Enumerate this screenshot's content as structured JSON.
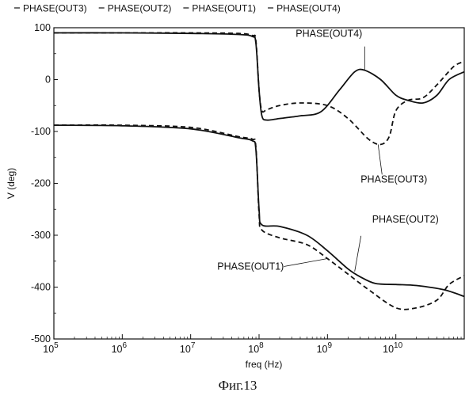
{
  "chart_data": {
    "type": "line",
    "legend": [
      "PHASE(OUT3)",
      "PHASE(OUT2)",
      "PHASE(OUT1)",
      "PHASE(OUT4)"
    ],
    "legend_position": "top",
    "xlabel": "freq (Hz)",
    "ylabel": "V (deg)",
    "x_scale": "log",
    "xlim": [
      100000,
      100000000000
    ],
    "ylim": [
      -500,
      100
    ],
    "x_ticks": [
      {
        "value": 100000,
        "base": "10",
        "exp": "5"
      },
      {
        "value": 1000000,
        "base": "10",
        "exp": "6"
      },
      {
        "value": 10000000,
        "base": "10",
        "exp": "7"
      },
      {
        "value": 100000000,
        "base": "10",
        "exp": "8"
      },
      {
        "value": 1000000000,
        "base": "10",
        "exp": "9"
      },
      {
        "value": 10000000000,
        "base": "10",
        "exp": "10"
      }
    ],
    "y_ticks": [
      {
        "value": 100,
        "label": "100"
      },
      {
        "value": 0,
        "label": "0"
      },
      {
        "value": -100,
        "label": "-100"
      },
      {
        "value": -200,
        "label": "-200"
      },
      {
        "value": -300,
        "label": "-300"
      },
      {
        "value": -400,
        "label": "-400"
      },
      {
        "value": -500,
        "label": "-500"
      }
    ],
    "grid": false,
    "series": [
      {
        "name": "PHASE(OUT4)",
        "style": "solid",
        "points": [
          [
            100000,
            90
          ],
          [
            1000000,
            90
          ],
          [
            10000000,
            89
          ],
          [
            50000000,
            87
          ],
          [
            80000000,
            83
          ],
          [
            90000000,
            70
          ],
          [
            100000000,
            -20
          ],
          [
            110000000,
            -70
          ],
          [
            130000000,
            -78
          ],
          [
            200000000,
            -75
          ],
          [
            400000000,
            -70
          ],
          [
            800000000,
            -62
          ],
          [
            1500000000,
            -20
          ],
          [
            2500000000,
            15
          ],
          [
            3500000000,
            18
          ],
          [
            6000000000,
            0
          ],
          [
            10000000000,
            -30
          ],
          [
            15000000000,
            -40
          ],
          [
            25000000000,
            -45
          ],
          [
            40000000000,
            -30
          ],
          [
            60000000000,
            0
          ],
          [
            100000000000,
            15
          ]
        ]
      },
      {
        "name": "PHASE(OUT3)",
        "style": "dashed",
        "points": [
          [
            100000,
            90
          ],
          [
            1000000,
            90
          ],
          [
            10000000,
            90
          ],
          [
            50000000,
            89
          ],
          [
            80000000,
            85
          ],
          [
            90000000,
            75
          ],
          [
            100000000,
            -20
          ],
          [
            110000000,
            -60
          ],
          [
            130000000,
            -58
          ],
          [
            200000000,
            -50
          ],
          [
            400000000,
            -45
          ],
          [
            1000000000,
            -50
          ],
          [
            2000000000,
            -75
          ],
          [
            4000000000,
            -115
          ],
          [
            6000000000,
            -125
          ],
          [
            8000000000,
            -110
          ],
          [
            10000000000,
            -60
          ],
          [
            15000000000,
            -40
          ],
          [
            25000000000,
            -35
          ],
          [
            40000000000,
            -10
          ],
          [
            70000000000,
            25
          ],
          [
            100000000000,
            35
          ]
        ]
      },
      {
        "name": "PHASE(OUT2)",
        "style": "solid",
        "points": [
          [
            100000,
            -88
          ],
          [
            1000000,
            -89
          ],
          [
            10000000,
            -95
          ],
          [
            50000000,
            -112
          ],
          [
            80000000,
            -118
          ],
          [
            90000000,
            -135
          ],
          [
            100000000,
            -250
          ],
          [
            110000000,
            -280
          ],
          [
            200000000,
            -283
          ],
          [
            500000000,
            -300
          ],
          [
            1000000000,
            -330
          ],
          [
            2000000000,
            -365
          ],
          [
            3000000000,
            -380
          ],
          [
            5000000000,
            -393
          ],
          [
            10000000000,
            -395
          ],
          [
            20000000000,
            -397
          ],
          [
            50000000000,
            -405
          ],
          [
            100000000000,
            -418
          ]
        ]
      },
      {
        "name": "PHASE(OUT1)",
        "style": "dashed",
        "points": [
          [
            100000,
            -88
          ],
          [
            1000000,
            -88
          ],
          [
            10000000,
            -92
          ],
          [
            50000000,
            -110
          ],
          [
            80000000,
            -115
          ],
          [
            90000000,
            -130
          ],
          [
            100000000,
            -260
          ],
          [
            110000000,
            -290
          ],
          [
            200000000,
            -305
          ],
          [
            500000000,
            -318
          ],
          [
            1000000000,
            -345
          ],
          [
            2000000000,
            -375
          ],
          [
            4000000000,
            -405
          ],
          [
            10000000000,
            -440
          ],
          [
            20000000000,
            -440
          ],
          [
            40000000000,
            -425
          ],
          [
            60000000000,
            -395
          ],
          [
            100000000000,
            -378
          ]
        ]
      }
    ],
    "annotations": [
      {
        "text": "PHASE(OUT4)",
        "x": 3500000000,
        "y": 18
      },
      {
        "text": "PHASE(OUT3)",
        "x": 5500000000,
        "y": -125
      },
      {
        "text": "PHASE(OUT2)",
        "x": 2500000000,
        "y": -370
      },
      {
        "text": "PHASE(OUT1)",
        "x": 1000000000,
        "y": -345
      }
    ]
  },
  "caption": "Фиг.13"
}
